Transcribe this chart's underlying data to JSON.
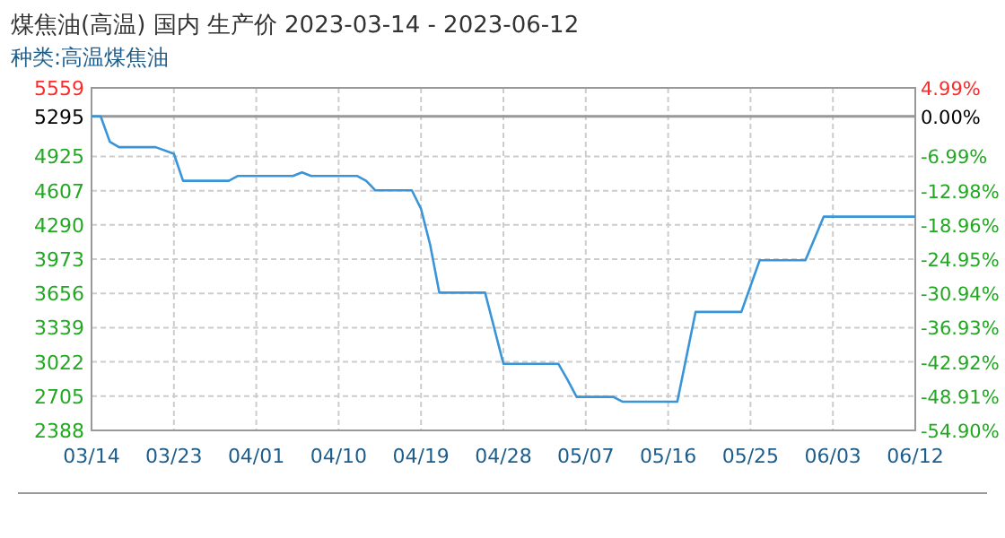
{
  "chart_data": {
    "type": "line",
    "title": "煤焦油(高温) 国内 生产价 2023-03-14 - 2023-06-12",
    "subtitle": "种类:高温煤焦油",
    "x": [
      "2023-03-14",
      "2023-03-15",
      "2023-03-16",
      "2023-03-17",
      "2023-03-21",
      "2023-03-23",
      "2023-03-24",
      "2023-03-29",
      "2023-03-30",
      "2023-04-05",
      "2023-04-06",
      "2023-04-07",
      "2023-04-12",
      "2023-04-13",
      "2023-04-14",
      "2023-04-18",
      "2023-04-19",
      "2023-04-20",
      "2023-04-21",
      "2023-04-26",
      "2023-04-28",
      "2023-05-04",
      "2023-05-05",
      "2023-05-06",
      "2023-05-10",
      "2023-05-11",
      "2023-05-17",
      "2023-05-19",
      "2023-05-24",
      "2023-05-26",
      "2023-05-31",
      "2023-06-02",
      "2023-06-12"
    ],
    "series": [
      {
        "color": "#3a95d8",
        "values": [
          5295,
          5295,
          5060,
          5010,
          5010,
          4949,
          4699,
          4699,
          4744,
          4744,
          4777,
          4744,
          4744,
          4699,
          4611,
          4611,
          4438,
          4106,
          3663,
          3663,
          3005,
          3005,
          2858,
          2698,
          2698,
          2654,
          2654,
          3485,
          3485,
          3963,
          3963,
          4367,
          4367
        ]
      }
    ],
    "xlim": [
      "2023-03-14",
      "2023-06-12"
    ],
    "xticks": [
      {
        "value": "2023-03-14",
        "label": "03/14"
      },
      {
        "value": "2023-03-23",
        "label": "03/23"
      },
      {
        "value": "2023-04-01",
        "label": "04/01"
      },
      {
        "value": "2023-04-10",
        "label": "04/10"
      },
      {
        "value": "2023-04-19",
        "label": "04/19"
      },
      {
        "value": "2023-04-28",
        "label": "04/28"
      },
      {
        "value": "2023-05-07",
        "label": "05/07"
      },
      {
        "value": "2023-05-16",
        "label": "05/16"
      },
      {
        "value": "2023-05-25",
        "label": "05/25"
      },
      {
        "value": "2023-06-03",
        "label": "06/03"
      },
      {
        "value": "2023-06-12",
        "label": "06/12"
      }
    ],
    "ylim": [
      2388,
      5559
    ],
    "yticks": [
      2388,
      2705,
      3022,
      3339,
      3656,
      3973,
      4290,
      4607,
      4925,
      5295,
      5559
    ],
    "y2lim": [
      -54.9,
      4.99
    ],
    "y2ticks": [
      {
        "value": -54.9,
        "label": "-54.90%"
      },
      {
        "value": -48.91,
        "label": "-48.91%"
      },
      {
        "value": -42.92,
        "label": "-42.92%"
      },
      {
        "value": -36.93,
        "label": "-36.93%"
      },
      {
        "value": -30.94,
        "label": "-30.94%"
      },
      {
        "value": -24.95,
        "label": "-24.95%"
      },
      {
        "value": -18.96,
        "label": "-18.96%"
      },
      {
        "value": -12.98,
        "label": "-12.98%"
      },
      {
        "value": -6.99,
        "label": "-6.99%"
      },
      {
        "value": 0.0,
        "label": "0.00%"
      },
      {
        "value": 4.99,
        "label": "4.99%"
      }
    ],
    "ref_lines": [
      {
        "axis": "y",
        "value": 5295,
        "label": null,
        "color": "#999999"
      }
    ],
    "grid": true,
    "marker": "none",
    "line_style": "solid"
  }
}
